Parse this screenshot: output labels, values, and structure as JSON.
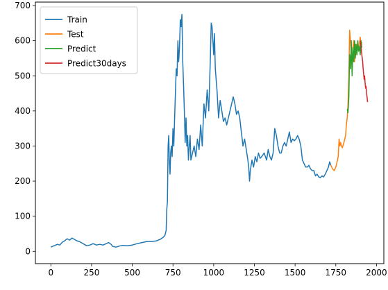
{
  "chart_data": {
    "type": "line",
    "title": "",
    "xlabel": "",
    "ylabel": "",
    "xlim": [
      -95,
      2045
    ],
    "ylim": [
      -35,
      710
    ],
    "xticks": [
      0,
      250,
      500,
      750,
      1000,
      1250,
      1500,
      1750,
      2000
    ],
    "yticks": [
      0,
      100,
      200,
      300,
      400,
      500,
      600,
      700
    ],
    "grid": false,
    "legend_position": "top-left",
    "series": [
      {
        "name": "Train",
        "color": "#1f77b4",
        "points": [
          [
            0,
            12
          ],
          [
            20,
            16
          ],
          [
            40,
            20
          ],
          [
            55,
            18
          ],
          [
            70,
            26
          ],
          [
            85,
            30
          ],
          [
            100,
            36
          ],
          [
            115,
            32
          ],
          [
            130,
            38
          ],
          [
            145,
            34
          ],
          [
            160,
            30
          ],
          [
            175,
            28
          ],
          [
            190,
            24
          ],
          [
            205,
            20
          ],
          [
            220,
            16
          ],
          [
            240,
            18
          ],
          [
            260,
            22
          ],
          [
            280,
            18
          ],
          [
            300,
            20
          ],
          [
            320,
            18
          ],
          [
            340,
            22
          ],
          [
            355,
            25
          ],
          [
            370,
            20
          ],
          [
            380,
            14
          ],
          [
            400,
            12
          ],
          [
            420,
            15
          ],
          [
            440,
            17
          ],
          [
            470,
            16
          ],
          [
            500,
            18
          ],
          [
            530,
            22
          ],
          [
            560,
            25
          ],
          [
            590,
            28
          ],
          [
            620,
            28
          ],
          [
            650,
            30
          ],
          [
            670,
            34
          ],
          [
            690,
            40
          ],
          [
            700,
            45
          ],
          [
            708,
            60
          ],
          [
            712,
            120
          ],
          [
            716,
            140
          ],
          [
            720,
            300
          ],
          [
            724,
            330
          ],
          [
            728,
            250
          ],
          [
            732,
            220
          ],
          [
            736,
            280
          ],
          [
            740,
            300
          ],
          [
            745,
            270
          ],
          [
            750,
            350
          ],
          [
            755,
            300
          ],
          [
            760,
            380
          ],
          [
            765,
            450
          ],
          [
            770,
            520
          ],
          [
            775,
            500
          ],
          [
            780,
            600
          ],
          [
            785,
            540
          ],
          [
            790,
            580
          ],
          [
            795,
            660
          ],
          [
            800,
            640
          ],
          [
            805,
            675
          ],
          [
            810,
            540
          ],
          [
            815,
            470
          ],
          [
            820,
            400
          ],
          [
            825,
            310
          ],
          [
            830,
            380
          ],
          [
            835,
            300
          ],
          [
            840,
            330
          ],
          [
            845,
            260
          ],
          [
            850,
            300
          ],
          [
            855,
            330
          ],
          [
            860,
            260
          ],
          [
            870,
            280
          ],
          [
            880,
            300
          ],
          [
            890,
            270
          ],
          [
            900,
            320
          ],
          [
            910,
            290
          ],
          [
            920,
            360
          ],
          [
            930,
            300
          ],
          [
            940,
            420
          ],
          [
            950,
            380
          ],
          [
            960,
            460
          ],
          [
            970,
            400
          ],
          [
            980,
            560
          ],
          [
            985,
            650
          ],
          [
            990,
            640
          ],
          [
            995,
            600
          ],
          [
            1000,
            560
          ],
          [
            1005,
            620
          ],
          [
            1010,
            520
          ],
          [
            1020,
            460
          ],
          [
            1030,
            380
          ],
          [
            1040,
            430
          ],
          [
            1050,
            400
          ],
          [
            1060,
            370
          ],
          [
            1070,
            380
          ],
          [
            1080,
            360
          ],
          [
            1090,
            380
          ],
          [
            1100,
            400
          ],
          [
            1110,
            420
          ],
          [
            1120,
            440
          ],
          [
            1130,
            420
          ],
          [
            1140,
            390
          ],
          [
            1150,
            400
          ],
          [
            1160,
            380
          ],
          [
            1170,
            340
          ],
          [
            1180,
            300
          ],
          [
            1190,
            320
          ],
          [
            1200,
            290
          ],
          [
            1210,
            260
          ],
          [
            1215,
            240
          ],
          [
            1220,
            200
          ],
          [
            1225,
            230
          ],
          [
            1235,
            260
          ],
          [
            1245,
            240
          ],
          [
            1255,
            270
          ],
          [
            1265,
            255
          ],
          [
            1275,
            280
          ],
          [
            1285,
            265
          ],
          [
            1295,
            270
          ],
          [
            1310,
            280
          ],
          [
            1325,
            260
          ],
          [
            1335,
            290
          ],
          [
            1345,
            270
          ],
          [
            1355,
            260
          ],
          [
            1365,
            280
          ],
          [
            1375,
            350
          ],
          [
            1385,
            330
          ],
          [
            1395,
            300
          ],
          [
            1405,
            280
          ],
          [
            1415,
            280
          ],
          [
            1425,
            300
          ],
          [
            1435,
            310
          ],
          [
            1445,
            300
          ],
          [
            1455,
            320
          ],
          [
            1465,
            340
          ],
          [
            1475,
            310
          ],
          [
            1485,
            320
          ],
          [
            1495,
            315
          ],
          [
            1505,
            320
          ],
          [
            1515,
            330
          ],
          [
            1525,
            320
          ],
          [
            1535,
            300
          ],
          [
            1545,
            260
          ],
          [
            1555,
            250
          ],
          [
            1565,
            240
          ],
          [
            1575,
            240
          ],
          [
            1585,
            245
          ],
          [
            1595,
            235
          ],
          [
            1605,
            230
          ],
          [
            1615,
            230
          ],
          [
            1625,
            215
          ],
          [
            1635,
            220
          ],
          [
            1645,
            212
          ],
          [
            1655,
            210
          ],
          [
            1665,
            215
          ],
          [
            1675,
            212
          ],
          [
            1685,
            220
          ],
          [
            1695,
            230
          ],
          [
            1705,
            240
          ],
          [
            1712,
            255
          ],
          [
            1720,
            245
          ]
        ]
      },
      {
        "name": "Test",
        "color": "#ff7f0e",
        "points": [
          [
            1720,
            245
          ],
          [
            1730,
            235
          ],
          [
            1740,
            230
          ],
          [
            1750,
            240
          ],
          [
            1758,
            255
          ],
          [
            1765,
            270
          ],
          [
            1770,
            320
          ],
          [
            1775,
            300
          ],
          [
            1780,
            310
          ],
          [
            1785,
            300
          ],
          [
            1790,
            295
          ],
          [
            1800,
            310
          ],
          [
            1810,
            330
          ],
          [
            1815,
            360
          ],
          [
            1820,
            380
          ],
          [
            1825,
            420
          ],
          [
            1830,
            500
          ],
          [
            1835,
            630
          ],
          [
            1840,
            600
          ],
          [
            1845,
            560
          ],
          [
            1850,
            520
          ],
          [
            1855,
            580
          ],
          [
            1860,
            600
          ],
          [
            1865,
            540
          ],
          [
            1870,
            590
          ],
          [
            1875,
            560
          ],
          [
            1880,
            580
          ],
          [
            1885,
            600
          ],
          [
            1890,
            570
          ],
          [
            1895,
            590
          ],
          [
            1900,
            610
          ],
          [
            1905,
            580
          ],
          [
            1910,
            595
          ]
        ]
      },
      {
        "name": "Predict",
        "color": "#2ca02c",
        "points": [
          [
            1820,
            405
          ],
          [
            1825,
            395
          ],
          [
            1830,
            440
          ],
          [
            1835,
            560
          ],
          [
            1840,
            520
          ],
          [
            1845,
            600
          ],
          [
            1850,
            500
          ],
          [
            1855,
            580
          ],
          [
            1860,
            540
          ],
          [
            1865,
            600
          ],
          [
            1870,
            550
          ],
          [
            1875,
            590
          ],
          [
            1880,
            560
          ],
          [
            1885,
            600
          ],
          [
            1890,
            570
          ],
          [
            1895,
            585
          ],
          [
            1900,
            560
          ],
          [
            1905,
            600
          ],
          [
            1910,
            580
          ]
        ]
      },
      {
        "name": "Predict30days",
        "color": "#d62728",
        "points": [
          [
            1900,
            600
          ],
          [
            1905,
            580
          ],
          [
            1910,
            560
          ],
          [
            1915,
            540
          ],
          [
            1918,
            520
          ],
          [
            1921,
            505
          ],
          [
            1924,
            490
          ],
          [
            1927,
            500
          ],
          [
            1930,
            480
          ],
          [
            1933,
            465
          ],
          [
            1936,
            470
          ],
          [
            1939,
            450
          ],
          [
            1942,
            440
          ],
          [
            1945,
            425
          ]
        ]
      }
    ]
  }
}
